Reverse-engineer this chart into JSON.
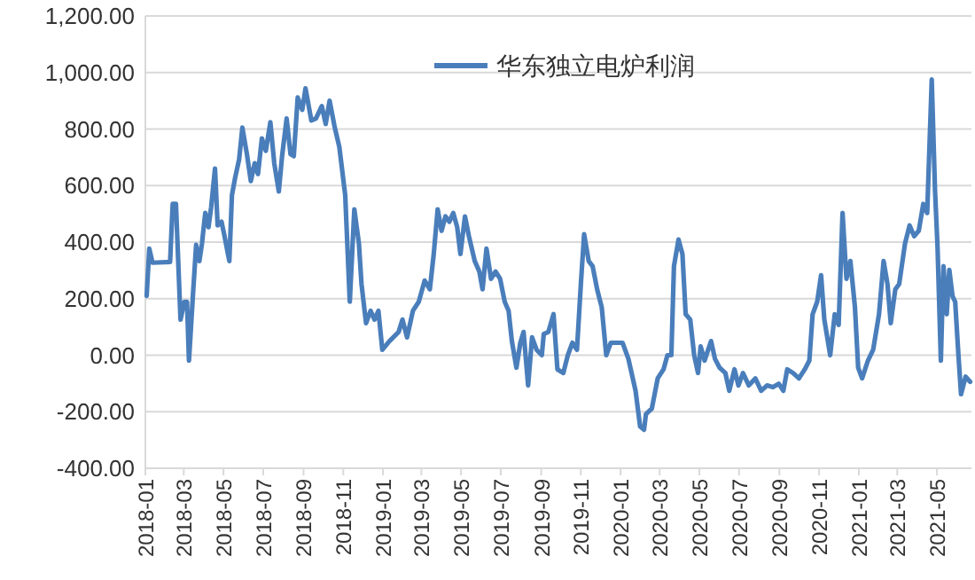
{
  "chart_data": {
    "type": "line",
    "x": [
      "2018-01-03",
      "2018-01-07",
      "2018-01-12",
      "2018-02-08",
      "2018-02-12",
      "2018-02-17",
      "2018-02-24",
      "2018-03-02",
      "2018-03-06",
      "2018-03-09",
      "2018-03-15",
      "2018-03-20",
      "2018-03-25",
      "2018-03-29",
      "2018-04-03",
      "2018-04-08",
      "2018-04-12",
      "2018-04-18",
      "2018-04-22",
      "2018-04-28",
      "2018-05-02",
      "2018-05-10",
      "2018-05-14",
      "2018-05-19",
      "2018-05-25",
      "2018-05-30",
      "2018-06-06",
      "2018-06-12",
      "2018-06-18",
      "2018-06-23",
      "2018-06-29",
      "2018-07-05",
      "2018-07-12",
      "2018-07-18",
      "2018-07-25",
      "2018-07-30",
      "2018-08-06",
      "2018-08-12",
      "2018-08-17",
      "2018-08-23",
      "2018-08-30",
      "2018-09-04",
      "2018-09-13",
      "2018-09-20",
      "2018-09-29",
      "2018-10-05",
      "2018-10-11",
      "2018-10-19",
      "2018-10-26",
      "2018-11-04",
      "2018-11-11",
      "2018-11-18",
      "2018-11-25",
      "2018-11-29",
      "2018-12-06",
      "2018-12-13",
      "2018-12-19",
      "2018-12-25",
      "2018-12-31",
      "2019-01-11",
      "2019-01-25",
      "2019-01-31",
      "2019-02-07",
      "2019-02-16",
      "2019-02-25",
      "2019-03-06",
      "2019-03-14",
      "2019-03-20",
      "2019-03-26",
      "2019-04-01",
      "2019-04-07",
      "2019-04-13",
      "2019-04-19",
      "2019-04-25",
      "2019-04-30",
      "2019-05-07",
      "2019-05-13",
      "2019-05-22",
      "2019-05-29",
      "2019-06-03",
      "2019-06-09",
      "2019-06-16",
      "2019-06-23",
      "2019-06-30",
      "2019-07-07",
      "2019-07-13",
      "2019-07-18",
      "2019-07-25",
      "2019-07-31",
      "2019-08-05",
      "2019-08-12",
      "2019-08-18",
      "2019-08-25",
      "2019-09-02",
      "2019-09-05",
      "2019-09-12",
      "2019-09-20",
      "2019-09-26",
      "2019-10-05",
      "2019-10-12",
      "2019-10-19",
      "2019-10-26",
      "2019-11-01",
      "2019-11-06",
      "2019-11-13",
      "2019-11-19",
      "2019-11-26",
      "2019-12-03",
      "2019-12-10",
      "2019-12-17",
      "2020-01-04",
      "2020-01-13",
      "2020-01-24",
      "2020-01-31",
      "2020-02-06",
      "2020-02-09",
      "2020-02-18",
      "2020-02-27",
      "2020-03-07",
      "2020-03-13",
      "2020-03-19",
      "2020-03-23",
      "2020-03-30",
      "2020-04-05",
      "2020-04-10",
      "2020-04-17",
      "2020-04-23",
      "2020-04-29",
      "2020-05-03",
      "2020-05-09",
      "2020-05-19",
      "2020-05-25",
      "2020-06-01",
      "2020-06-10",
      "2020-06-16",
      "2020-06-24",
      "2020-06-30",
      "2020-07-07",
      "2020-07-16",
      "2020-07-26",
      "2020-08-04",
      "2020-08-13",
      "2020-08-22",
      "2020-08-31",
      "2020-09-07",
      "2020-09-13",
      "2020-09-22",
      "2020-10-01",
      "2020-10-10",
      "2020-10-17",
      "2020-10-22",
      "2020-10-29",
      "2020-11-04",
      "2020-11-09",
      "2020-11-18",
      "2020-11-25",
      "2020-12-01",
      "2020-12-07",
      "2020-12-13",
      "2020-12-19",
      "2020-12-26",
      "2020-12-31",
      "2021-01-06",
      "2021-01-15",
      "2021-01-23",
      "2021-02-01",
      "2021-02-08",
      "2021-02-14",
      "2021-02-19",
      "2021-02-26",
      "2021-03-04",
      "2021-03-13",
      "2021-03-20",
      "2021-03-27",
      "2021-04-03",
      "2021-04-10",
      "2021-04-16",
      "2021-04-23",
      "2021-04-28",
      "2021-05-02",
      "2021-05-07",
      "2021-05-11",
      "2021-05-16",
      "2021-05-20",
      "2021-05-25",
      "2021-05-29",
      "2021-06-03",
      "2021-06-07",
      "2021-06-14",
      "2021-06-21"
    ],
    "series": [
      {
        "name": "华东独立电炉利润",
        "color": "#4a7ebb",
        "values": [
          210,
          377,
          327,
          330,
          535,
          535,
          126,
          189,
          189,
          -19,
          210,
          390,
          333,
          396,
          503,
          453,
          522,
          660,
          459,
          472,
          428,
          333,
          566,
          629,
          692,
          805,
          711,
          616,
          679,
          641,
          767,
          723,
          824,
          679,
          579,
          704,
          837,
          711,
          704,
          912,
          868,
          944,
          830,
          837,
          881,
          818,
          900,
          805,
          736,
          566,
          189,
          516,
          396,
          252,
          113,
          157,
          126,
          157,
          19,
          50,
          82,
          126,
          63,
          157,
          189,
          264,
          233,
          358,
          516,
          440,
          491,
          472,
          503,
          453,
          358,
          491,
          421,
          333,
          296,
          233,
          377,
          270,
          296,
          270,
          189,
          157,
          50,
          -44,
          44,
          82,
          -107,
          63,
          19,
          0,
          75,
          82,
          145,
          -50,
          -63,
          0,
          44,
          19,
          252,
          428,
          333,
          315,
          233,
          170,
          0,
          44,
          44,
          -13,
          -126,
          -252,
          -264,
          -208,
          -189,
          -82,
          -50,
          0,
          0,
          315,
          409,
          358,
          145,
          126,
          0,
          -63,
          31,
          -19,
          50,
          -13,
          -44,
          -63,
          -126,
          -50,
          -107,
          -63,
          -107,
          -82,
          -126,
          -107,
          -113,
          -101,
          -126,
          -50,
          -63,
          -82,
          -50,
          -19,
          145,
          189,
          283,
          126,
          0,
          145,
          107,
          503,
          270,
          333,
          170,
          -44,
          -82,
          -19,
          19,
          145,
          333,
          252,
          113,
          233,
          252,
          396,
          459,
          421,
          440,
          535,
          503,
          975,
          585,
          377,
          -19,
          315,
          145,
          302,
          208,
          189,
          0,
          -138,
          -76,
          -94
        ]
      }
    ],
    "xlim": [
      "2018-01-01",
      "2021-06-23"
    ],
    "xticks": [
      "2018-01",
      "2018-03",
      "2018-05",
      "2018-07",
      "2018-09",
      "2018-11",
      "2019-01",
      "2019-03",
      "2019-05",
      "2019-07",
      "2019-09",
      "2019-11",
      "2020-01",
      "2020-03",
      "2020-05",
      "2020-07",
      "2020-09",
      "2020-11",
      "2021-01",
      "2021-03",
      "2021-05"
    ],
    "ylim": [
      -400,
      1200
    ],
    "yticks": [
      {
        "value": -400,
        "label": "-400.00"
      },
      {
        "value": -200,
        "label": "-200.00"
      },
      {
        "value": 0,
        "label": "0.00"
      },
      {
        "value": 200,
        "label": "200.00"
      },
      {
        "value": 400,
        "label": "400.00"
      },
      {
        "value": 600,
        "label": "600.00"
      },
      {
        "value": 800,
        "label": "800.00"
      },
      {
        "value": 1000,
        "label": "1,000.00"
      },
      {
        "value": 1200,
        "label": "1,200.00"
      }
    ],
    "grid": "y",
    "legend": "top",
    "line_style": "solid",
    "marker": "none"
  }
}
